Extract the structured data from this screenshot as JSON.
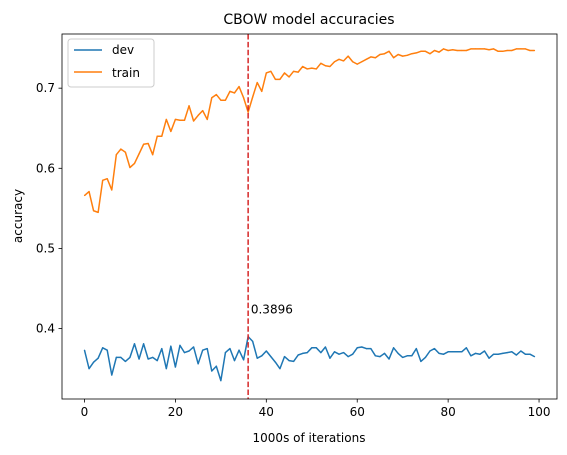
{
  "chart_data": {
    "type": "line",
    "title": "CBOW model accuracies",
    "xlabel": "1000s of iterations",
    "ylabel": "accuracy",
    "xlim": [
      -4.95,
      103.95
    ],
    "ylim": [
      0.3121,
      0.7676
    ],
    "xticks": [
      0,
      20,
      40,
      60,
      80,
      100
    ],
    "yticks": [
      0.4,
      0.5,
      0.6,
      0.7
    ],
    "grid": false,
    "legend": {
      "placement": "upper-left"
    },
    "x": [
      0,
      1,
      2,
      3,
      4,
      5,
      6,
      7,
      8,
      9,
      10,
      11,
      12,
      13,
      14,
      15,
      16,
      17,
      18,
      19,
      20,
      21,
      22,
      23,
      24,
      25,
      26,
      27,
      28,
      29,
      30,
      31,
      32,
      33,
      34,
      35,
      36,
      37,
      38,
      39,
      40,
      41,
      42,
      43,
      44,
      45,
      46,
      47,
      48,
      49,
      50,
      51,
      52,
      53,
      54,
      55,
      56,
      57,
      58,
      59,
      60,
      61,
      62,
      63,
      64,
      65,
      66,
      67,
      68,
      69,
      70,
      71,
      72,
      73,
      74,
      75,
      76,
      77,
      78,
      79,
      80,
      81,
      82,
      83,
      84,
      85,
      86,
      87,
      88,
      89,
      90,
      91,
      92,
      93,
      94,
      95,
      96,
      97,
      98,
      99
    ],
    "series": [
      {
        "name": "dev",
        "color": "#1f77b4",
        "values": [
          0.373,
          0.35,
          0.358,
          0.363,
          0.376,
          0.373,
          0.342,
          0.364,
          0.364,
          0.359,
          0.364,
          0.381,
          0.362,
          0.381,
          0.362,
          0.364,
          0.36,
          0.375,
          0.35,
          0.378,
          0.352,
          0.379,
          0.37,
          0.372,
          0.377,
          0.356,
          0.373,
          0.375,
          0.347,
          0.353,
          0.335,
          0.37,
          0.375,
          0.36,
          0.373,
          0.361,
          0.39,
          0.384,
          0.363,
          0.366,
          0.372,
          0.365,
          0.358,
          0.35,
          0.365,
          0.36,
          0.359,
          0.367,
          0.369,
          0.37,
          0.376,
          0.376,
          0.37,
          0.377,
          0.363,
          0.371,
          0.368,
          0.37,
          0.365,
          0.368,
          0.376,
          0.377,
          0.375,
          0.375,
          0.366,
          0.365,
          0.369,
          0.362,
          0.376,
          0.369,
          0.364,
          0.366,
          0.366,
          0.375,
          0.359,
          0.364,
          0.372,
          0.375,
          0.369,
          0.368,
          0.371,
          0.371,
          0.371,
          0.371,
          0.376,
          0.366,
          0.369,
          0.368,
          0.372,
          0.363,
          0.368,
          0.368,
          0.369,
          0.37,
          0.371,
          0.367,
          0.372,
          0.368,
          0.368,
          0.365
        ]
      },
      {
        "name": "train",
        "color": "#ff7f0e",
        "values": [
          0.566,
          0.571,
          0.547,
          0.545,
          0.585,
          0.587,
          0.573,
          0.617,
          0.624,
          0.62,
          0.601,
          0.606,
          0.618,
          0.63,
          0.631,
          0.617,
          0.64,
          0.64,
          0.661,
          0.646,
          0.661,
          0.66,
          0.66,
          0.678,
          0.659,
          0.666,
          0.672,
          0.661,
          0.688,
          0.692,
          0.685,
          0.685,
          0.696,
          0.694,
          0.702,
          0.688,
          0.67,
          0.689,
          0.707,
          0.696,
          0.719,
          0.721,
          0.711,
          0.711,
          0.719,
          0.714,
          0.721,
          0.72,
          0.727,
          0.724,
          0.725,
          0.724,
          0.731,
          0.728,
          0.727,
          0.733,
          0.736,
          0.734,
          0.74,
          0.733,
          0.73,
          0.733,
          0.736,
          0.739,
          0.738,
          0.742,
          0.743,
          0.746,
          0.738,
          0.742,
          0.74,
          0.741,
          0.743,
          0.744,
          0.746,
          0.746,
          0.743,
          0.747,
          0.745,
          0.749,
          0.747,
          0.748,
          0.747,
          0.747,
          0.747,
          0.749,
          0.749,
          0.749,
          0.749,
          0.748,
          0.749,
          0.746,
          0.746,
          0.747,
          0.747,
          0.749,
          0.749,
          0.749,
          0.747,
          0.747
        ]
      }
    ],
    "vline": {
      "x": 36,
      "color": "#d62728",
      "style": "dashed"
    },
    "annotation": {
      "text": "0.3896",
      "x": 36.6,
      "y": 0.4185,
      "color": "#d62728"
    }
  }
}
